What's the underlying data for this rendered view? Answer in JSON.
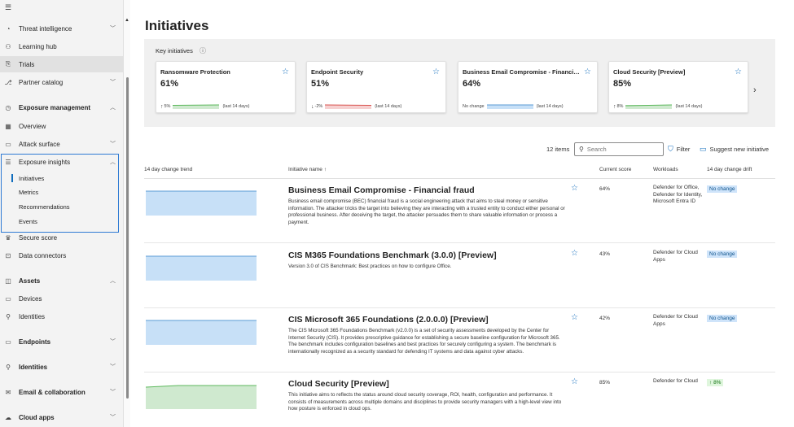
{
  "sidebar": {
    "items": [
      {
        "label": "Threat intelligence",
        "icon": "threat-intelligence-icon",
        "chevron": "down"
      },
      {
        "label": "Learning hub",
        "icon": "learning-hub-icon"
      },
      {
        "label": "Trials",
        "icon": "trials-icon"
      },
      {
        "label": "Partner catalog",
        "icon": "partner-catalog-icon",
        "chevron": "down"
      },
      {
        "label": "Exposure management",
        "icon": "exposure-management-icon",
        "chevron": "up"
      },
      {
        "label": "Overview",
        "icon": "overview-icon"
      },
      {
        "label": "Attack surface",
        "icon": "attack-surface-icon",
        "chevron": "down"
      },
      {
        "label": "Exposure insights",
        "icon": "exposure-insights-icon",
        "chevron": "up"
      },
      {
        "label": "Secure score",
        "icon": "secure-score-icon"
      },
      {
        "label": "Data connectors",
        "icon": "data-connectors-icon"
      },
      {
        "label": "Assets",
        "icon": "assets-icon",
        "chevron": "up"
      },
      {
        "label": "Devices",
        "icon": "devices-icon"
      },
      {
        "label": "Identities",
        "icon": "identities-icon"
      },
      {
        "label": "Endpoints",
        "icon": "endpoints-icon",
        "chevron": "down"
      },
      {
        "label": "Identities",
        "icon": "identities-section-icon",
        "chevron": "down"
      },
      {
        "label": "Email & collaboration",
        "icon": "email-collaboration-icon",
        "chevron": "down"
      },
      {
        "label": "Cloud apps",
        "icon": "cloud-apps-icon",
        "chevron": "down"
      }
    ],
    "insights_sub": [
      "Initiatives",
      "Metrics",
      "Recommendations",
      "Events"
    ]
  },
  "page": {
    "title": "Initiatives"
  },
  "key_initiatives": {
    "title": "Key initiatives",
    "cards": [
      {
        "title": "Ransomware Protection",
        "value": "61%",
        "direction": "up",
        "delta": "5%",
        "period": "(last 14 days)",
        "trend_color": "#6cc26c"
      },
      {
        "title": "Endpoint Security",
        "value": "51%",
        "direction": "down",
        "delta": "-2%",
        "period": "(last 14 days)",
        "trend_color": "#e07c7c"
      },
      {
        "title": "Business Email Compromise - Financial fraud",
        "value": "64%",
        "direction": "none",
        "delta": "No change",
        "period": "(last 14 days)",
        "trend_color": "#7fb5ec"
      },
      {
        "title": "Cloud Security [Preview]",
        "value": "85%",
        "direction": "up",
        "delta": "8%",
        "period": "(last 14 days)",
        "trend_color": "#6cc26c"
      }
    ]
  },
  "toolbar": {
    "items_count": "12 items",
    "search_placeholder": "Search",
    "filter_label": "Filter",
    "suggest_label": "Suggest new initiative"
  },
  "table": {
    "headers": {
      "trend": "14 day change trend",
      "name": "Initiative name ↑",
      "score": "Current score",
      "workloads": "Workloads",
      "drift": "14 day change drift"
    },
    "rows": [
      {
        "name": "Business Email Compromise - Financial fraud",
        "description": "Business email compromise (BEC) financial fraud is a social engineering attack that aims to steal money or sensitive information. The attacker tricks the target into believing they are interacting with a trusted entity to conduct either personal or professional business. After deceiving the target, the attacker persuades them to share valuable information or process a payment.",
        "score": "64%",
        "workloads": "Defender for Office, Defender for Identity, Microsoft Entra ID",
        "drift": "No change",
        "drift_type": "none",
        "trend_fill": "#c7e0f7",
        "trend_line": "#5b9bd5"
      },
      {
        "name": "CIS M365 Foundations Benchmark (3.0.0) [Preview]",
        "description": "Version 3.0 of CIS Benchmark: Best practices on how to configure Office.",
        "score": "43%",
        "workloads": "Defender for Cloud Apps",
        "drift": "No change",
        "drift_type": "none",
        "trend_fill": "#c7e0f7",
        "trend_line": "#5b9bd5"
      },
      {
        "name": "CIS Microsoft 365 Foundations (2.0.0.0) [Preview]",
        "description": "The CIS Microsoft 365 Foundations Benchmark (v2.0.0) is a set of security assessments developed by the Center for Internet Security (CIS). It provides prescriptive guidance for establishing a secure baseline configuration for Microsoft 365. The benchmark includes configuration baselines and best practices for securely configuring a system. The benchmark is internationally recognized as a security standard for defending IT systems and data against cyber attacks.",
        "score": "42%",
        "workloads": "Defender for Cloud Apps",
        "drift": "No change",
        "drift_type": "none",
        "trend_fill": "#c7e0f7",
        "trend_line": "#5b9bd5"
      },
      {
        "name": "Cloud Security [Preview]",
        "description": "This initiative aims to reflects the status around cloud security coverage, ROI, health, configuration and performance. It consists of measurements across multiple domains and disciplines to provide security managers with a high-level view into how posture is enforced in cloud ops.",
        "score": "85%",
        "workloads": "Defender for Cloud",
        "drift": "8%",
        "drift_type": "up",
        "trend_fill": "#cfe9cf",
        "trend_line": "#5cb85c"
      }
    ]
  }
}
